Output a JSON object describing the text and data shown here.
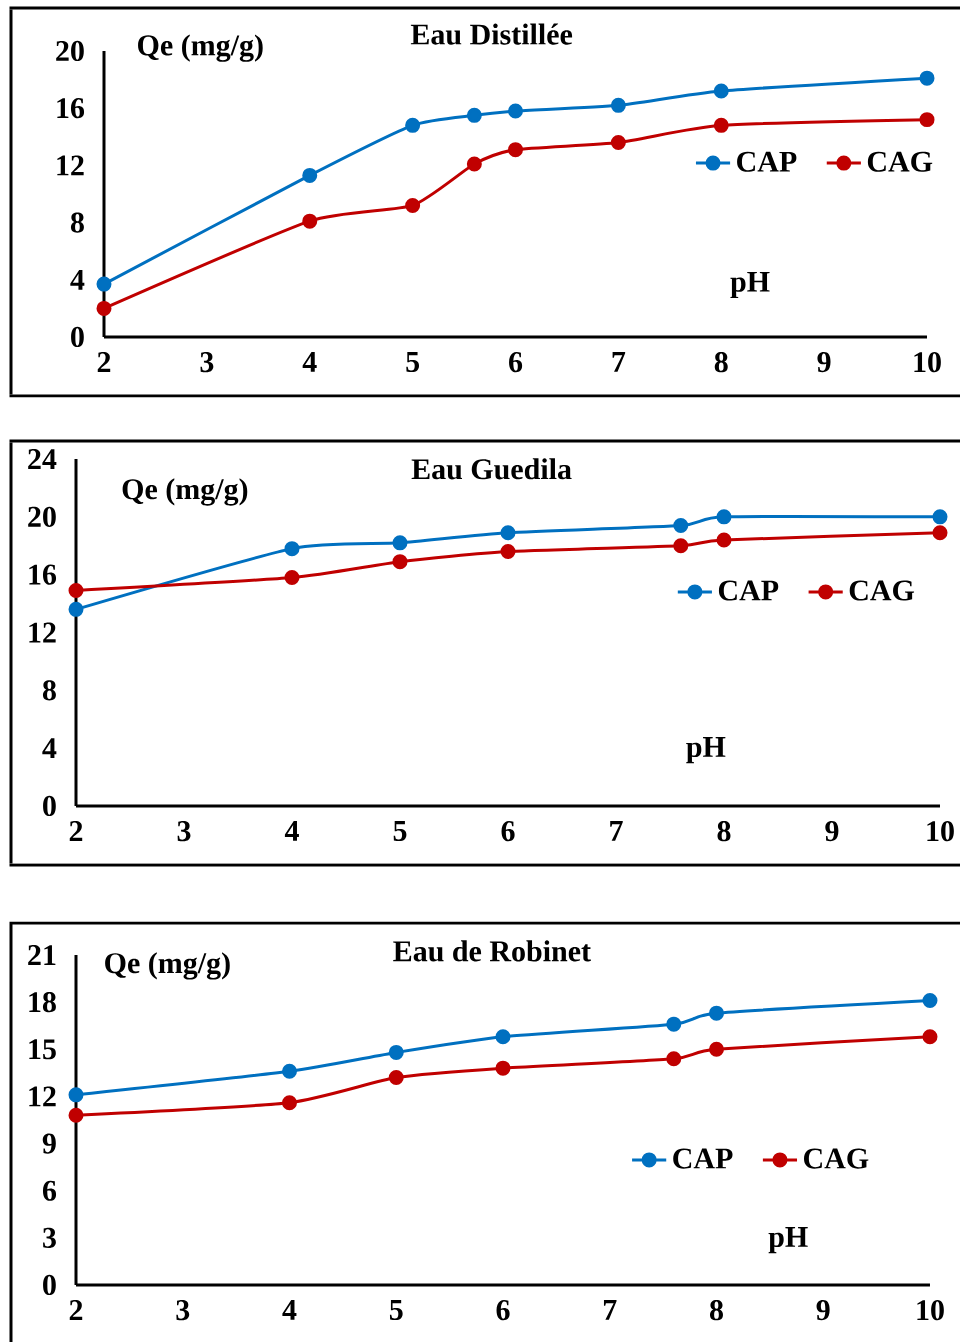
{
  "chart_data": [
    {
      "type": "line",
      "title": "Eau Distillée",
      "xlabel": "pH",
      "ylabel": "Qe (mg/g)",
      "x": [
        2,
        4,
        5,
        5.6,
        6,
        7,
        8,
        10
      ],
      "xlim": [
        2,
        10
      ],
      "xticks": [
        2,
        3,
        4,
        5,
        6,
        7,
        8,
        9,
        10
      ],
      "ylim": [
        0,
        20
      ],
      "yticks": [
        0,
        4,
        8,
        12,
        16,
        20
      ],
      "grid": false,
      "legend": "right",
      "marker": "circle",
      "line_style": "solid",
      "series": [
        {
          "name": "CAP",
          "color": "#0070c0",
          "values": [
            3.7,
            11.3,
            14.8,
            15.5,
            15.8,
            16.2,
            17.2,
            18.1
          ]
        },
        {
          "name": "CAG",
          "color": "#c00000",
          "values": [
            2.0,
            8.1,
            9.2,
            12.1,
            13.1,
            13.6,
            14.8,
            15.2
          ]
        }
      ]
    },
    {
      "type": "line",
      "title": "Eau Guedila",
      "xlabel": "pH",
      "ylabel": "Qe (mg/g)",
      "x": [
        2,
        4,
        5,
        6,
        7.6,
        8,
        10
      ],
      "xlim": [
        2,
        10
      ],
      "xticks": [
        2,
        3,
        4,
        5,
        6,
        7,
        8,
        9,
        10
      ],
      "ylim": [
        0,
        24
      ],
      "yticks": [
        0,
        4,
        8,
        12,
        16,
        20,
        24
      ],
      "grid": false,
      "legend": "right",
      "marker": "circle",
      "line_style": "solid",
      "series": [
        {
          "name": "CAP",
          "color": "#0070c0",
          "values": [
            13.6,
            17.8,
            18.2,
            18.9,
            19.4,
            20.0,
            20.0
          ]
        },
        {
          "name": "CAG",
          "color": "#c00000",
          "values": [
            14.9,
            15.8,
            16.9,
            17.6,
            18.0,
            18.4,
            18.9
          ]
        }
      ]
    },
    {
      "type": "line",
      "title": "Eau de Robinet",
      "xlabel": "pH",
      "ylabel": "Qe (mg/g)",
      "x": [
        2,
        4,
        5,
        6,
        7.6,
        8,
        10
      ],
      "xlim": [
        2,
        10
      ],
      "xticks": [
        2,
        3,
        4,
        5,
        6,
        7,
        8,
        9,
        10
      ],
      "ylim": [
        0,
        21
      ],
      "yticks": [
        0,
        3,
        6,
        9,
        12,
        15,
        18,
        21
      ],
      "grid": false,
      "legend": "right",
      "marker": "circle",
      "line_style": "solid",
      "series": [
        {
          "name": "CAP",
          "color": "#0070c0",
          "values": [
            12.1,
            13.6,
            14.8,
            15.8,
            16.6,
            17.3,
            18.1
          ]
        },
        {
          "name": "CAG",
          "color": "#c00000",
          "values": [
            10.8,
            11.6,
            13.2,
            13.8,
            14.4,
            15.0,
            15.8
          ]
        }
      ]
    }
  ]
}
